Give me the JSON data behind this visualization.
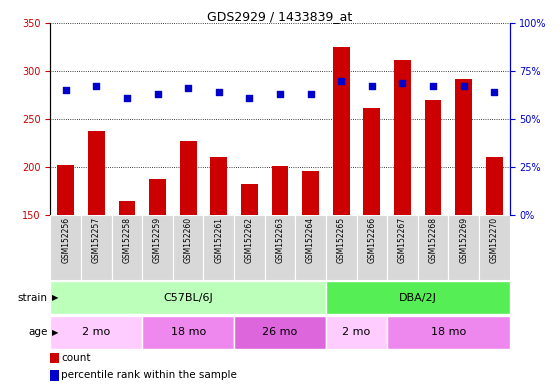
{
  "title": "GDS2929 / 1433839_at",
  "samples": [
    "GSM152256",
    "GSM152257",
    "GSM152258",
    "GSM152259",
    "GSM152260",
    "GSM152261",
    "GSM152262",
    "GSM152263",
    "GSM152264",
    "GSM152265",
    "GSM152266",
    "GSM152267",
    "GSM152268",
    "GSM152269",
    "GSM152270"
  ],
  "counts": [
    202,
    238,
    165,
    188,
    227,
    210,
    182,
    201,
    196,
    325,
    262,
    312,
    270,
    292,
    210
  ],
  "percentile_ranks": [
    65,
    67,
    61,
    63,
    66,
    64,
    61,
    63,
    63,
    70,
    67,
    69,
    67,
    67,
    64
  ],
  "ylim_left": [
    150,
    350
  ],
  "ylim_right": [
    0,
    100
  ],
  "bar_color": "#cc0000",
  "dot_color": "#0000cc",
  "strain_groups": [
    {
      "label": "C57BL/6J",
      "start": 0,
      "end": 9,
      "color": "#bbffbb"
    },
    {
      "label": "DBA/2J",
      "start": 9,
      "end": 15,
      "color": "#55ee55"
    }
  ],
  "age_groups": [
    {
      "label": "2 mo",
      "start": 0,
      "end": 3,
      "color": "#ffccff"
    },
    {
      "label": "18 mo",
      "start": 3,
      "end": 6,
      "color": "#ee88ee"
    },
    {
      "label": "26 mo",
      "start": 6,
      "end": 9,
      "color": "#dd66dd"
    },
    {
      "label": "2 mo",
      "start": 9,
      "end": 11,
      "color": "#ffccff"
    },
    {
      "label": "18 mo",
      "start": 11,
      "end": 15,
      "color": "#ee88ee"
    }
  ],
  "yticks_left": [
    150,
    200,
    250,
    300,
    350
  ],
  "yticks_right": [
    0,
    25,
    50,
    75,
    100
  ],
  "bar_bottom": 150,
  "bar_color_hex": "#cc0000",
  "dot_color_hex": "#0000cc",
  "right_axis_color": "#0000cc",
  "left_axis_color": "#cc0000",
  "grid_linestyle": "dotted",
  "grid_color": "#000000",
  "cell_bg": "#d8d8d8"
}
